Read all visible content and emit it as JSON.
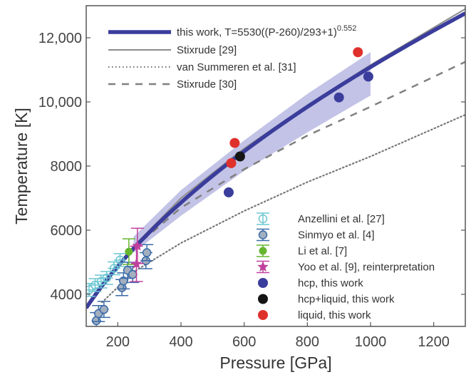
{
  "chart_data": {
    "type": "scatter",
    "xlabel": "Pressure [GPa]",
    "ylabel": "Temperature [K]",
    "xlim": [
      100,
      1300
    ],
    "ylim": [
      3000,
      13000
    ],
    "xticks": [
      200,
      400,
      600,
      800,
      1000,
      1200
    ],
    "xtick_labels": [
      "200",
      "400",
      "600",
      "800",
      "1000",
      "1200"
    ],
    "yticks": [
      4000,
      6000,
      8000,
      10000,
      12000
    ],
    "ytick_labels": [
      "4000",
      "6000",
      "8000",
      "10,000",
      "12,000"
    ],
    "grid": false,
    "lines": [
      {
        "name": "this work, T=5530((P-260)/293+1)",
        "name_sup": "0.552",
        "style": "solid-thick",
        "color": "#3b3d9c",
        "formula": "T=5530((P-260)/293+1)^0.552",
        "prange": [
          100,
          1300
        ]
      },
      {
        "name": "Stixrude [29]",
        "style": "solid",
        "color": "#8c8c8c",
        "points": [
          [
            245,
            5450
          ],
          [
            400,
            7000
          ],
          [
            600,
            8550
          ],
          [
            800,
            9900
          ],
          [
            1000,
            11150
          ],
          [
            1300,
            12900
          ]
        ]
      },
      {
        "name": "van Summeren et al. [31]",
        "style": "dotted",
        "color": "#777777",
        "points": [
          [
            150,
            3750
          ],
          [
            250,
            4700
          ],
          [
            400,
            5600
          ],
          [
            600,
            6600
          ],
          [
            800,
            7500
          ],
          [
            1000,
            8300
          ],
          [
            1300,
            9600
          ]
        ]
      },
      {
        "name": "Stixrude [30]",
        "style": "dashed",
        "color": "#808080",
        "points": [
          [
            245,
            5400
          ],
          [
            400,
            6700
          ],
          [
            600,
            7900
          ],
          [
            800,
            8950
          ],
          [
            1000,
            9850
          ],
          [
            1300,
            11250
          ]
        ]
      }
    ],
    "uncertainty_band": {
      "color": "#b9b9e3",
      "points": [
        [
          250,
          5300,
          5800
        ],
        [
          400,
          6450,
          7250
        ],
        [
          600,
          7850,
          8800
        ],
        [
          800,
          9050,
          10250
        ],
        [
          1000,
          10200,
          11550
        ]
      ]
    },
    "series": [
      {
        "name": "Anzellini et al. [27]",
        "marker": "open-circle",
        "color": "#6cc7d2",
        "points": [
          [
            109,
            4140
          ],
          [
            128,
            4290
          ],
          [
            147,
            4400
          ],
          [
            165,
            4510
          ],
          [
            188,
            4810
          ],
          [
            207,
            5070
          ]
        ],
        "xerr": 20,
        "yerr": 200
      },
      {
        "name": "Sinmyo et al. [4]",
        "marker": "circle",
        "color": "#3a6aa8",
        "fill": "#a3afbf",
        "points": [
          [
            132,
            3180
          ],
          [
            139,
            3400
          ],
          [
            156,
            3530
          ],
          [
            213,
            4210
          ],
          [
            218,
            4420
          ],
          [
            231,
            4750
          ],
          [
            247,
            4620
          ],
          [
            289,
            5050
          ],
          [
            292,
            5300
          ]
        ],
        "xerr": 15,
        "yerr": 250
      },
      {
        "name": "Li et al. [7]",
        "marker": "circle",
        "color": "#66b52f",
        "points": [
          [
            235,
            5330
          ]
        ],
        "xerr": 10,
        "yerr": 400
      },
      {
        "name": "Yoo et al. [9], reinterpretation",
        "marker": "star",
        "color": "#c0409e",
        "points": [
          [
            262,
            5510
          ],
          [
            259,
            4950
          ]
        ],
        "xerr": 0,
        "yerr": 550
      },
      {
        "name": "hcp, this work",
        "marker": "circle",
        "color": "#3b3d9c",
        "points": [
          [
            551,
            7180
          ],
          [
            900,
            10140
          ],
          [
            993,
            10790
          ]
        ]
      },
      {
        "name": "hcp+liquid, this work",
        "marker": "circle",
        "color": "#151515",
        "points": [
          [
            587,
            8300
          ]
        ]
      },
      {
        "name": "liquid, this work",
        "marker": "circle",
        "color": "#e0302c",
        "points": [
          [
            559,
            8090
          ],
          [
            570,
            8720
          ],
          [
            960,
            11550
          ]
        ]
      }
    ],
    "legends": [
      "top-left",
      "bottom-right"
    ]
  }
}
